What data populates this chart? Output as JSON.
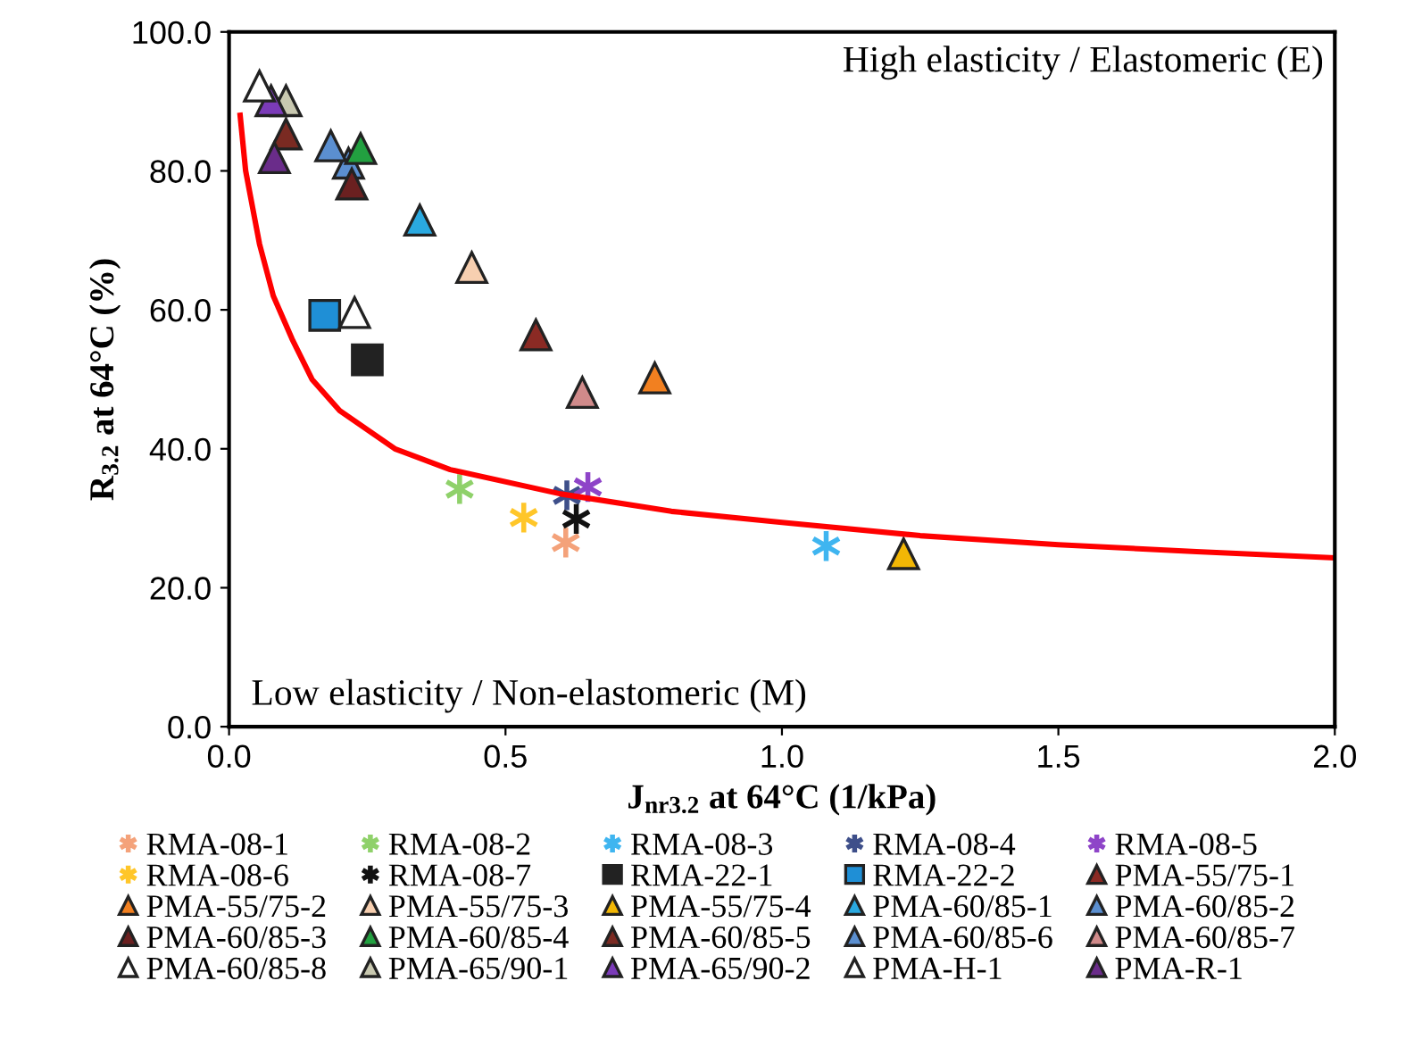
{
  "chart_data": {
    "type": "scatter",
    "xlabel": "J$_{nr3.2}$ at 64°C (1/kPa)",
    "ylabel": "R$_{3.2}$ at 64°C (%)",
    "xlim": [
      0,
      2
    ],
    "ylim": [
      0,
      100
    ],
    "xticks": [
      {
        "value": 0,
        "label": "0.0"
      },
      {
        "value": 0.5,
        "label": "0.5"
      },
      {
        "value": 1,
        "label": "1.0"
      },
      {
        "value": 1.5,
        "label": "1.5"
      },
      {
        "value": 2,
        "label": "2.0"
      }
    ],
    "yticks": [
      {
        "value": 0,
        "label": "0.0"
      },
      {
        "value": 20,
        "label": "20.0"
      },
      {
        "value": 40,
        "label": "40.0"
      },
      {
        "value": 60,
        "label": "60.0"
      },
      {
        "value": 80,
        "label": "80.0"
      },
      {
        "value": 100,
        "label": "100.0"
      }
    ],
    "grid": false,
    "legend": "bottom",
    "annotations": [
      "High elasticity / Elastomeric (E)",
      "Low elasticity / Non-elastomeric (M)"
    ],
    "series": [
      {
        "name": "RMA-08-1",
        "color": "#f4a27a",
        "marker": "cross",
        "x": [
          0.609
        ],
        "values": [
          26.5
        ]
      },
      {
        "name": "RMA-08-2",
        "color": "#8fd16a",
        "marker": "cross",
        "x": [
          0.417
        ],
        "values": [
          34.2
        ]
      },
      {
        "name": "RMA-08-3",
        "color": "#3fb5f0",
        "marker": "cross",
        "x": [
          1.08
        ],
        "values": [
          26.0
        ]
      },
      {
        "name": "RMA-08-4",
        "color": "#3e4f8a",
        "marker": "cross",
        "x": [
          0.611
        ],
        "values": [
          33.3
        ]
      },
      {
        "name": "RMA-08-5",
        "color": "#8e44c8",
        "marker": "cross",
        "x": [
          0.649
        ],
        "values": [
          34.5
        ]
      },
      {
        "name": "RMA-08-6",
        "color": "#ffc629",
        "marker": "cross",
        "x": [
          0.533
        ],
        "values": [
          30.1
        ]
      },
      {
        "name": "RMA-08-7",
        "color": "#111111",
        "marker": "cross",
        "x": [
          0.628
        ],
        "values": [
          29.9
        ]
      },
      {
        "name": "RMA-22-1",
        "color": "#222222",
        "marker": "square",
        "x": [
          0.25
        ],
        "values": [
          52.8
        ]
      },
      {
        "name": "RMA-22-2",
        "color": "#1f8fd6",
        "marker": "square",
        "x": [
          0.173
        ],
        "values": [
          59.2
        ]
      },
      {
        "name": "PMA-55/75-1",
        "color": "#8b2a24",
        "marker": "triangle",
        "x": [
          0.555
        ],
        "values": [
          56.4
        ]
      },
      {
        "name": "PMA-55/75-2",
        "color": "#f28020",
        "marker": "triangle",
        "x": [
          0.77
        ],
        "values": [
          50.2
        ]
      },
      {
        "name": "PMA-55/75-3",
        "color": "#f7cfb0",
        "marker": "triangle",
        "x": [
          0.439
        ],
        "values": [
          66.1
        ]
      },
      {
        "name": "PMA-55/75-4",
        "color": "#f2b705",
        "marker": "triangle",
        "x": [
          1.22
        ],
        "values": [
          24.9
        ]
      },
      {
        "name": "PMA-60/85-1",
        "color": "#2aa9e0",
        "marker": "triangle",
        "x": [
          0.345
        ],
        "values": [
          72.9
        ]
      },
      {
        "name": "PMA-60/85-2",
        "color": "#5b8fd0",
        "marker": "triangle",
        "x": [
          0.216
        ],
        "values": [
          81.1
        ]
      },
      {
        "name": "PMA-60/85-3",
        "color": "#6b2020",
        "marker": "triangle",
        "x": [
          0.222
        ],
        "values": [
          78.1
        ]
      },
      {
        "name": "PMA-60/85-4",
        "color": "#22a040",
        "marker": "triangle",
        "x": [
          0.238
        ],
        "values": [
          83.2
        ]
      },
      {
        "name": "PMA-60/85-5",
        "color": "#7a2a22",
        "marker": "triangle",
        "x": [
          0.103
        ],
        "values": [
          85.3
        ]
      },
      {
        "name": "PMA-60/85-6",
        "color": "#5b8fd0",
        "marker": "triangle",
        "x": [
          0.184
        ],
        "values": [
          83.6
        ]
      },
      {
        "name": "PMA-60/85-7",
        "color": "#d08a8a",
        "marker": "triangle",
        "x": [
          0.639
        ],
        "values": [
          48.1
        ]
      },
      {
        "name": "PMA-60/85-8",
        "color": "#ffffff",
        "marker": "triangle",
        "x": [
          0.227
        ],
        "values": [
          59.6
        ]
      },
      {
        "name": "PMA-65/90-1",
        "color": "#c8c8b0",
        "marker": "triangle",
        "x": [
          0.103
        ],
        "values": [
          90.1
        ]
      },
      {
        "name": "PMA-65/90-2",
        "color": "#7b3bb8",
        "marker": "triangle",
        "x": [
          0.076
        ],
        "values": [
          90.1
        ]
      },
      {
        "name": "PMA-H-1",
        "color": "#ffffff",
        "marker": "triangle",
        "x": [
          0.055
        ],
        "values": [
          92.2
        ]
      },
      {
        "name": "PMA-R-1",
        "color": "#6a2c8a",
        "marker": "triangle",
        "x": [
          0.082
        ],
        "values": [
          81.9
        ]
      },
      {
        "type": "line",
        "color": "#ff0000",
        "marker": "none",
        "line_style": "solid",
        "x": [
          0.02,
          0.03,
          0.055,
          0.08,
          0.114,
          0.15,
          0.2,
          0.3,
          0.4,
          0.6,
          0.8,
          1.0,
          1.25,
          1.5,
          1.75,
          2.0
        ],
        "values": [
          88,
          80,
          69.5,
          62,
          55.8,
          50,
          45.5,
          40,
          37,
          33.5,
          31,
          29.4,
          27.5,
          26.2,
          25.2,
          24.3
        ]
      }
    ]
  }
}
